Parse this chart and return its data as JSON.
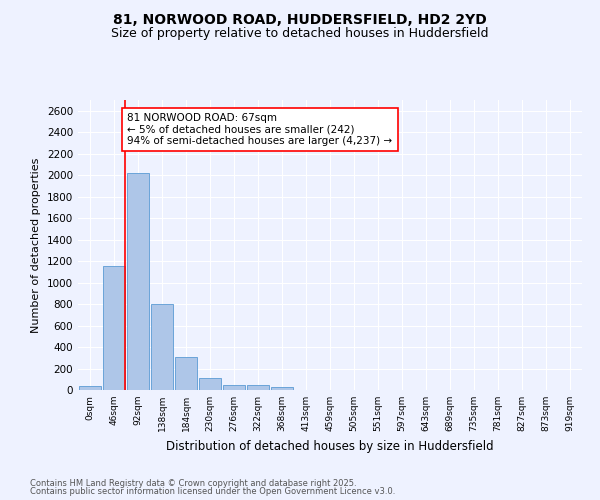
{
  "title1": "81, NORWOOD ROAD, HUDDERSFIELD, HD2 2YD",
  "title2": "Size of property relative to detached houses in Huddersfield",
  "xlabel": "Distribution of detached houses by size in Huddersfield",
  "ylabel": "Number of detached properties",
  "categories": [
    "0sqm",
    "46sqm",
    "92sqm",
    "138sqm",
    "184sqm",
    "230sqm",
    "276sqm",
    "322sqm",
    "368sqm",
    "413sqm",
    "459sqm",
    "505sqm",
    "551sqm",
    "597sqm",
    "643sqm",
    "689sqm",
    "735sqm",
    "781sqm",
    "827sqm",
    "873sqm",
    "919sqm"
  ],
  "values": [
    40,
    1150,
    2020,
    800,
    305,
    110,
    50,
    50,
    30,
    0,
    0,
    0,
    0,
    0,
    0,
    0,
    0,
    0,
    0,
    0,
    0
  ],
  "bar_color": "#aec6e8",
  "bar_edge_color": "#5b9bd5",
  "vline_x": 1.47,
  "vline_color": "red",
  "annotation_text": "81 NORWOOD ROAD: 67sqm\n← 5% of detached houses are smaller (242)\n94% of semi-detached houses are larger (4,237) →",
  "annotation_box_color": "white",
  "annotation_box_edgecolor": "red",
  "ylim": [
    0,
    2700
  ],
  "yticks": [
    0,
    200,
    400,
    600,
    800,
    1000,
    1200,
    1400,
    1600,
    1800,
    2000,
    2200,
    2400,
    2600
  ],
  "footer1": "Contains HM Land Registry data © Crown copyright and database right 2025.",
  "footer2": "Contains public sector information licensed under the Open Government Licence v3.0.",
  "bg_color": "#eef2ff",
  "plot_bg_color": "#eef2ff",
  "grid_color": "white",
  "title1_fontsize": 10,
  "title2_fontsize": 9,
  "annotation_fontsize": 7.5,
  "xlabel_fontsize": 8.5,
  "ylabel_fontsize": 8,
  "xtick_fontsize": 6.5,
  "ytick_fontsize": 7.5,
  "footer_fontsize": 6
}
